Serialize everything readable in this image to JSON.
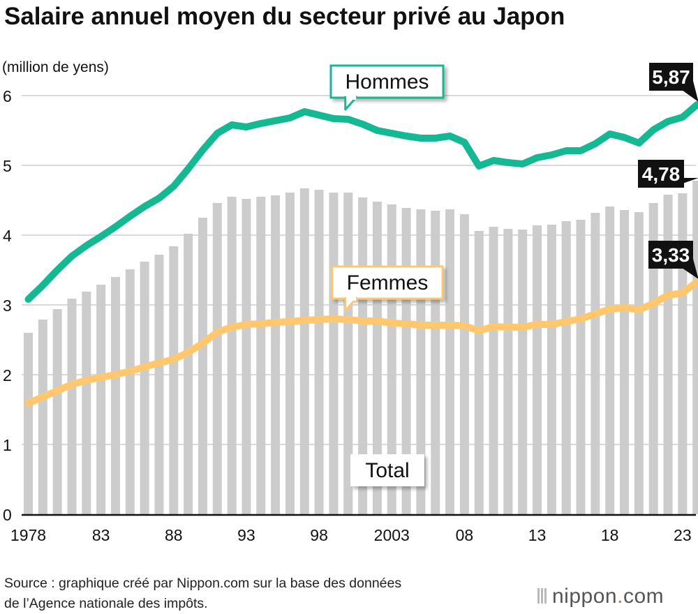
{
  "title": "Salaire annuel moyen du secteur privé au Japon",
  "source": {
    "line1": "Source : graphique créé par Nippon.com sur la base des données",
    "line2": "de l’Agence nationale des impôts."
  },
  "brand": {
    "name": "nippon",
    "dot": ".",
    "tld": "com"
  },
  "colors": {
    "men": "#14b892",
    "women": "#ffc86e",
    "total_bars": "#cccccc",
    "gridline": "#d9d9d9",
    "callout_bg": "#111111",
    "callout_text": "#ffffff"
  },
  "chart_data": {
    "type": "bar",
    "unit_label": "(million de yens)",
    "ylim": [
      0,
      6
    ],
    "yticks": [
      0,
      1,
      2,
      3,
      4,
      5,
      6
    ],
    "grid": true,
    "xtick_labels": [
      {
        "year": 1978,
        "label": "1978"
      },
      {
        "year": 1983,
        "label": "83"
      },
      {
        "year": 1988,
        "label": "88"
      },
      {
        "year": 1993,
        "label": "93"
      },
      {
        "year": 1998,
        "label": "98"
      },
      {
        "year": 2003,
        "label": "2003"
      },
      {
        "year": 2008,
        "label": "08"
      },
      {
        "year": 2013,
        "label": "13"
      },
      {
        "year": 2018,
        "label": "18"
      },
      {
        "year": 2023,
        "label": "23"
      }
    ],
    "years": [
      1978,
      1979,
      1980,
      1981,
      1982,
      1983,
      1984,
      1985,
      1986,
      1987,
      1988,
      1989,
      1990,
      1991,
      1992,
      1993,
      1994,
      1995,
      1996,
      1997,
      1998,
      1999,
      2000,
      2001,
      2002,
      2003,
      2004,
      2005,
      2006,
      2007,
      2008,
      2009,
      2010,
      2011,
      2012,
      2013,
      2014,
      2015,
      2016,
      2017,
      2018,
      2019,
      2020,
      2021,
      2022,
      2023,
      2024
    ],
    "series": [
      {
        "name": "Total",
        "kind": "bar",
        "values": [
          2.6,
          2.79,
          2.94,
          3.09,
          3.19,
          3.29,
          3.4,
          3.51,
          3.62,
          3.72,
          3.84,
          4.02,
          4.25,
          4.46,
          4.55,
          4.52,
          4.55,
          4.57,
          4.61,
          4.67,
          4.65,
          4.61,
          4.61,
          4.54,
          4.48,
          4.44,
          4.39,
          4.37,
          4.35,
          4.37,
          4.3,
          4.06,
          4.12,
          4.09,
          4.08,
          4.14,
          4.15,
          4.2,
          4.22,
          4.32,
          4.41,
          4.36,
          4.33,
          4.46,
          4.58,
          4.6,
          4.78
        ]
      },
      {
        "name": "Hommes",
        "kind": "line",
        "values": [
          3.08,
          3.28,
          3.5,
          3.7,
          3.85,
          3.98,
          4.12,
          4.27,
          4.41,
          4.53,
          4.7,
          4.95,
          5.22,
          5.46,
          5.58,
          5.55,
          5.6,
          5.64,
          5.68,
          5.77,
          5.72,
          5.67,
          5.66,
          5.59,
          5.5,
          5.46,
          5.42,
          5.39,
          5.39,
          5.42,
          5.33,
          4.99,
          5.07,
          5.04,
          5.02,
          5.11,
          5.15,
          5.21,
          5.21,
          5.31,
          5.45,
          5.4,
          5.32,
          5.51,
          5.63,
          5.69,
          5.87
        ]
      },
      {
        "name": "Femmes",
        "kind": "line",
        "values": [
          1.59,
          1.68,
          1.77,
          1.86,
          1.92,
          1.96,
          2.0,
          2.05,
          2.11,
          2.17,
          2.22,
          2.32,
          2.45,
          2.61,
          2.68,
          2.72,
          2.73,
          2.75,
          2.76,
          2.78,
          2.79,
          2.8,
          2.79,
          2.77,
          2.77,
          2.74,
          2.73,
          2.71,
          2.71,
          2.71,
          2.7,
          2.63,
          2.69,
          2.68,
          2.68,
          2.72,
          2.72,
          2.76,
          2.8,
          2.87,
          2.94,
          2.96,
          2.93,
          3.02,
          3.14,
          3.17,
          3.33
        ]
      }
    ],
    "callouts": [
      {
        "series": "Hommes",
        "label": "5,87"
      },
      {
        "series": "Total",
        "label": "4,78"
      },
      {
        "series": "Femmes",
        "label": "3,33"
      }
    ]
  }
}
